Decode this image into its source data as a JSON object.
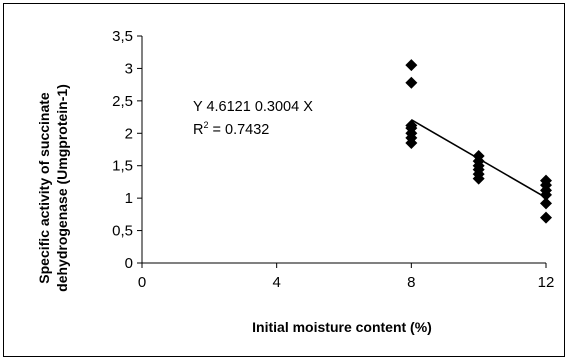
{
  "chart_data": {
    "type": "scatter",
    "title": "",
    "xlabel": "Initial moisture content (%)",
    "ylabel_lines": [
      "Specific activity of succinate",
      "dehydrogenase (Umgprotein-1)"
    ],
    "xlim": [
      0,
      12
    ],
    "ylim": [
      0,
      3.5
    ],
    "xticks": [
      "0",
      "4",
      "8",
      "12"
    ],
    "xtick_values": [
      0,
      4,
      8,
      12
    ],
    "yticks": [
      "0",
      "0,5",
      "1",
      "1,5",
      "2",
      "2,5",
      "3",
      "3,5"
    ],
    "ytick_values": [
      0,
      0.5,
      1,
      1.5,
      2,
      2.5,
      3,
      3.5
    ],
    "grid": false,
    "marker": "diamond",
    "marker_color": "#000000",
    "points": [
      {
        "x": 8,
        "y": 3.05
      },
      {
        "x": 8,
        "y": 2.78
      },
      {
        "x": 8,
        "y": 2.12
      },
      {
        "x": 8,
        "y": 2.08
      },
      {
        "x": 8,
        "y": 2.0
      },
      {
        "x": 8,
        "y": 1.93
      },
      {
        "x": 8,
        "y": 1.85
      },
      {
        "x": 10,
        "y": 1.65
      },
      {
        "x": 10,
        "y": 1.57
      },
      {
        "x": 10,
        "y": 1.5
      },
      {
        "x": 10,
        "y": 1.44
      },
      {
        "x": 10,
        "y": 1.37
      },
      {
        "x": 10,
        "y": 1.3
      },
      {
        "x": 12,
        "y": 1.27
      },
      {
        "x": 12,
        "y": 1.2
      },
      {
        "x": 12,
        "y": 1.12
      },
      {
        "x": 12,
        "y": 1.05
      },
      {
        "x": 12,
        "y": 0.92
      },
      {
        "x": 12,
        "y": 0.7
      }
    ],
    "trendline": {
      "intercept": 4.6121,
      "slope": -0.3004,
      "x_range": [
        8,
        12
      ]
    },
    "annotations": {
      "equation": "Y  4.6121  0.3004 X",
      "r2_prefix": "R",
      "r2_sup": "2",
      "r2_suffix": " = 0.7432"
    }
  }
}
